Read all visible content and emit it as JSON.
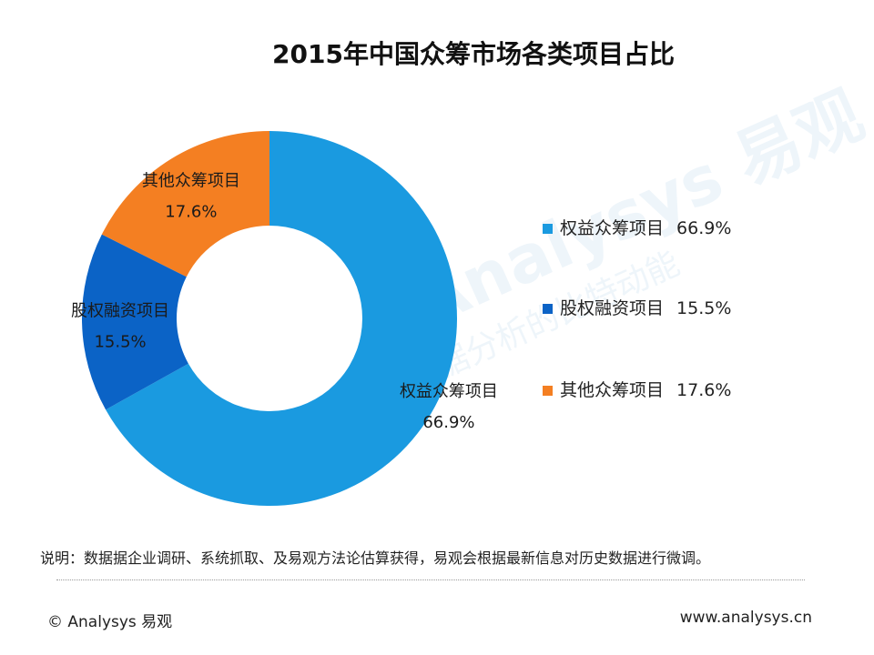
{
  "header": {
    "title": "2015年中国众筹市场各类项目占比"
  },
  "chart_data": {
    "type": "pie",
    "variant": "donut",
    "title": "2015年中国众筹市场各类项目占比",
    "legend_position": "right",
    "series": [
      {
        "name": "权益众筹项目",
        "value": 66.9,
        "label": "66.9%",
        "color": "#1A9AE0"
      },
      {
        "name": "股权融资项目",
        "value": 15.5,
        "label": "15.5%",
        "color": "#0B63C6"
      },
      {
        "name": "其他众筹项目",
        "value": 17.6,
        "label": "17.6%",
        "color": "#F47F22"
      }
    ]
  },
  "legend": {
    "items": [
      {
        "name": "权益众筹项目",
        "value": "66.9%",
        "color": "#1A9AE0"
      },
      {
        "name": "股权融资项目",
        "value": "15.5%",
        "color": "#0B63C6"
      },
      {
        "name": "其他众筹项目",
        "value": "17.6%",
        "color": "#F47F22"
      }
    ]
  },
  "watermark": {
    "text": "Analysys 易观",
    "subtext": "大数据分析的比特动能"
  },
  "note": {
    "text": "说明：数据据企业调研、系统抓取、及易观方法论估算获得，易观会根据最新信息对历史数据进行微调。"
  },
  "footer": {
    "left": "© Analysys 易观",
    "right": "www.analysys.cn"
  }
}
